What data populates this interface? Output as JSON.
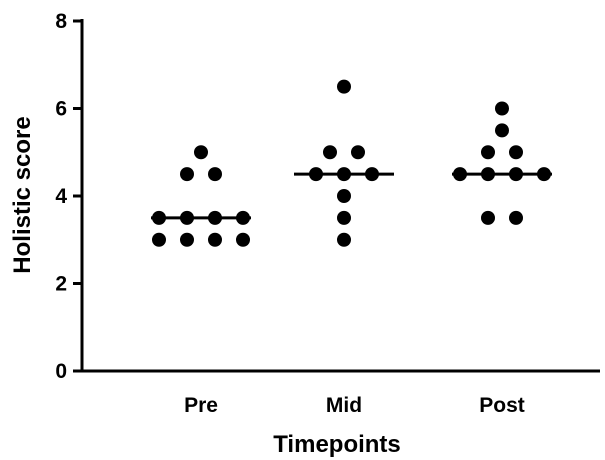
{
  "chart_data": {
    "type": "scatter",
    "title": "",
    "xlabel": "Timepoints",
    "ylabel": "Holistic score",
    "ylim": [
      0,
      8
    ],
    "yticks": [
      0,
      2,
      4,
      6,
      8
    ],
    "grid": false,
    "categories": [
      "Pre",
      "Mid",
      "Post"
    ],
    "groups": [
      {
        "category": "Pre",
        "median": 3.5,
        "values": [
          5,
          4.5,
          4.5,
          3.5,
          3.5,
          3.5,
          3.5,
          3,
          3,
          3,
          3
        ]
      },
      {
        "category": "Mid",
        "median": 4.5,
        "values": [
          6.5,
          5,
          5,
          4.5,
          4.5,
          4.5,
          4,
          3.5,
          3
        ]
      },
      {
        "category": "Post",
        "median": 4.5,
        "values": [
          6,
          5.5,
          5,
          5,
          4.5,
          4.5,
          4.5,
          4.5,
          3.5,
          3.5
        ]
      }
    ],
    "colors": {
      "points": "#000000",
      "axes": "#000000"
    }
  }
}
